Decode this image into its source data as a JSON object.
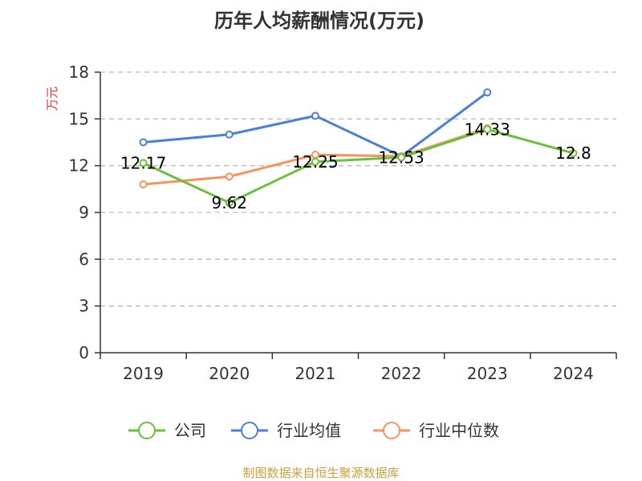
{
  "chart_data": {
    "type": "line",
    "title": "历年人均薪酬情况(万元)",
    "ylabel": "万元",
    "xlabel": "",
    "categories": [
      "2019",
      "2020",
      "2021",
      "2022",
      "2023",
      "2024"
    ],
    "ylim": [
      0,
      18
    ],
    "yticks": [
      0,
      3,
      6,
      9,
      12,
      15,
      18
    ],
    "grid": true,
    "legend_position": "bottom",
    "series": [
      {
        "name": "公司",
        "color": "#67c23a",
        "values": [
          12.17,
          9.62,
          12.25,
          12.53,
          14.33,
          12.8
        ],
        "labels": [
          "12.17",
          "9.62",
          "12.25",
          "12.53",
          "14.33",
          "12.8"
        ]
      },
      {
        "name": "行业均值",
        "color": "#4a7fd9",
        "values": [
          13.5,
          14.0,
          15.2,
          12.6,
          16.7,
          null
        ]
      },
      {
        "name": "行业中位数",
        "color": "#f5925e",
        "values": [
          10.8,
          11.3,
          12.7,
          12.6,
          14.4,
          null
        ]
      }
    ]
  },
  "source_text": "制图数据来自恒生聚源数据库",
  "colors": {
    "axis": "#333333",
    "grid": "#bbbbbb",
    "unit_label": "#e03030",
    "source": "#c8a03c",
    "title": "#333333"
  }
}
